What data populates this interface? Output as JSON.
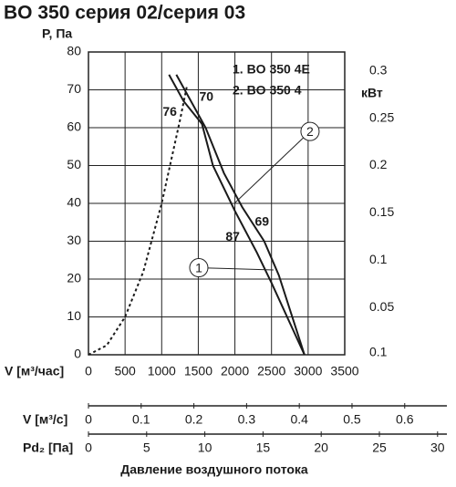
{
  "chart_data": [
    {
      "type": "line",
      "title": "BO 350 серия 02/серия 03",
      "ylabel": "P, Па",
      "xlabel": "V [м³/час]",
      "y2label": "кВт",
      "xlim": [
        0,
        3500
      ],
      "xticks": [
        0,
        500,
        1000,
        1500,
        2000,
        2500,
        3000,
        3500
      ],
      "ylim": [
        0,
        80
      ],
      "yticks": [
        0,
        10,
        20,
        30,
        40,
        50,
        60,
        70,
        80
      ],
      "y2lim": [
        0,
        0.32
      ],
      "y2ticks": [
        0.3,
        0.25,
        0.2,
        0.15,
        0.1,
        0.05
      ],
      "y2_bottom_label": "0.1",
      "grid": true,
      "legend": "top-right",
      "series": [
        {
          "name": "1. BO 350 4E",
          "color": "#1a1a1a",
          "x": [
            1200,
            1600,
            1850,
            2100,
            2400,
            2600,
            2950
          ],
          "values": [
            74,
            60,
            48,
            39,
            30,
            21,
            0
          ]
        },
        {
          "name": "2. BO 350 4",
          "color": "#1a1a1a",
          "x": [
            1100,
            1300,
            1550,
            1700,
            2000,
            2300,
            2500,
            2950
          ],
          "values": [
            74,
            67,
            61,
            50,
            38,
            27,
            19,
            0
          ]
        }
      ],
      "system_curve": {
        "color": "#1a1a1a",
        "dashed": true,
        "x": [
          0,
          250,
          500,
          750,
          1000,
          1250,
          1345
        ],
        "values": [
          0,
          2.5,
          10,
          22,
          40,
          62,
          71
        ]
      },
      "annotations": [
        {
          "text": "76",
          "x": 1110,
          "y": 64
        },
        {
          "text": "70",
          "x": 1610,
          "y": 68
        },
        {
          "text": "69",
          "x": 2370,
          "y": 35
        },
        {
          "text": "87",
          "x": 1970,
          "y": 31
        }
      ],
      "callouts": [
        {
          "label": "1",
          "x": 1507,
          "y": 23,
          "target_x": 2528,
          "target_y": 22.4
        },
        {
          "label": "2",
          "x": 3026,
          "y": 59,
          "target_x": 1993,
          "target_y": 40
        }
      ],
      "caption": "Давление воздушного потока"
    },
    {
      "type": "axis",
      "xlabel": "V [м³/с]",
      "xlim": [
        0,
        0.68
      ],
      "xticks": [
        0,
        0.1,
        0.2,
        0.3,
        0.4,
        0.5,
        0.6
      ]
    },
    {
      "type": "axis",
      "xlabel": "Pd₂ [Па]",
      "xlim": [
        0,
        30.8
      ],
      "xticks": [
        0,
        5,
        10,
        15,
        20,
        25,
        30
      ]
    }
  ]
}
